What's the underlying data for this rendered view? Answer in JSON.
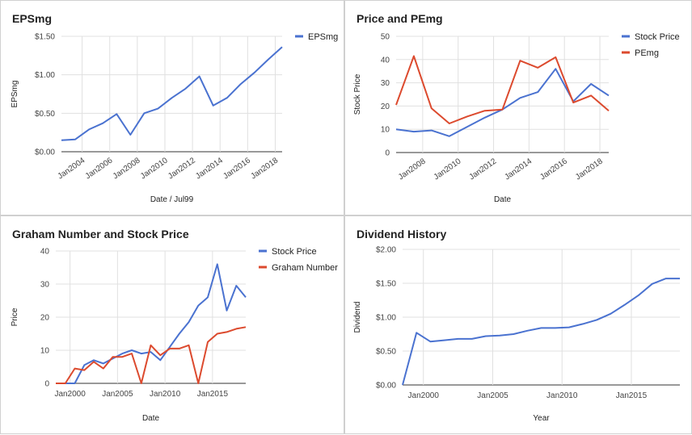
{
  "chart_data": [
    {
      "type": "line",
      "title": "EPSmg",
      "xlabel": "Date / Jul99",
      "ylabel": "EPSmg",
      "xlim": [
        2002.5,
        2018.5
      ],
      "ylim": [
        0,
        1.5
      ],
      "yticks": [
        0,
        0.5,
        1.0,
        1.5
      ],
      "ytick_labels": [
        "$0.00",
        "$0.50",
        "$1.00",
        "$1.50"
      ],
      "xticks": [
        2004,
        2006,
        2008,
        2010,
        2012,
        2014,
        2016,
        2018
      ],
      "xtick_labels": [
        "Jan2004",
        "Jan2006",
        "Jan2008",
        "Jan2010",
        "Jan2012",
        "Jan2014",
        "Jan2016",
        "Jan2018"
      ],
      "xtick_rotate": true,
      "vgrid": true,
      "legend": "top-right",
      "series": [
        {
          "name": "EPSmg",
          "color": "#4a72d0",
          "x": [
            2002.5,
            2003.5,
            2004.5,
            2005.5,
            2006.5,
            2007.5,
            2008.5,
            2009.5,
            2010.5,
            2011.5,
            2012.5,
            2013.5,
            2014.5,
            2015.5,
            2016.5,
            2017.5,
            2018.5
          ],
          "y": [
            0.15,
            0.16,
            0.29,
            0.37,
            0.49,
            0.22,
            0.5,
            0.56,
            0.7,
            0.82,
            0.98,
            0.6,
            0.7,
            0.88,
            1.03,
            1.2,
            1.36
          ]
        }
      ]
    },
    {
      "type": "line",
      "title": "Price and PEmg",
      "xlabel": "Date",
      "ylabel": "Stock Price",
      "xlim": [
        2006.5,
        2018.5
      ],
      "ylim": [
        0,
        50
      ],
      "yticks": [
        0,
        10,
        20,
        30,
        40,
        50
      ],
      "ytick_labels": [
        "0",
        "10",
        "20",
        "30",
        "40",
        "50"
      ],
      "xticks": [
        2008,
        2010,
        2012,
        2014,
        2016,
        2018
      ],
      "xtick_labels": [
        "Jan2008",
        "Jan2010",
        "Jan2012",
        "Jan2014",
        "Jan2016",
        "Jan2018"
      ],
      "xtick_rotate": true,
      "vgrid": true,
      "legend": "top-right",
      "series": [
        {
          "name": "Stock Price",
          "color": "#4a72d0",
          "x": [
            2006.5,
            2007.5,
            2008.5,
            2009.5,
            2010.5,
            2011.5,
            2012.5,
            2013.5,
            2014.5,
            2015.5,
            2016.5,
            2017.5,
            2018.5
          ],
          "y": [
            10.0,
            9.0,
            9.5,
            7.0,
            11.0,
            15.0,
            18.5,
            23.5,
            26.0,
            36.0,
            22.0,
            29.5,
            24.5
          ]
        },
        {
          "name": "PEmg",
          "color": "#dc4a2e",
          "x": [
            2006.5,
            2007.5,
            2008.5,
            2009.5,
            2010.5,
            2011.5,
            2012.5,
            2013.5,
            2014.5,
            2015.5,
            2016.5,
            2017.5,
            2018.5
          ],
          "y": [
            20.5,
            41.5,
            19.0,
            12.5,
            15.5,
            18.0,
            18.5,
            39.5,
            36.5,
            41.0,
            21.5,
            24.5,
            18.0
          ]
        }
      ]
    },
    {
      "type": "line",
      "title": "Graham Number and Stock Price",
      "xlabel": "Date",
      "ylabel": "Price",
      "xlim": [
        1998.5,
        2018.5
      ],
      "ylim": [
        0,
        40
      ],
      "yticks": [
        0,
        10,
        20,
        30,
        40
      ],
      "ytick_labels": [
        "0",
        "10",
        "20",
        "30",
        "40"
      ],
      "xticks": [
        2000,
        2005,
        2010,
        2015
      ],
      "xtick_labels": [
        "Jan2000",
        "Jan2005",
        "Jan2010",
        "Jan2015"
      ],
      "xtick_rotate": false,
      "vgrid": true,
      "legend": "top-right",
      "series": [
        {
          "name": "Stock Price",
          "color": "#4a72d0",
          "x": [
            1998.5,
            1999.5,
            2000.5,
            2001.5,
            2002.5,
            2003.5,
            2004.5,
            2005.5,
            2006.5,
            2007.5,
            2008.5,
            2009.5,
            2010.5,
            2011.5,
            2012.5,
            2013.5,
            2014.5,
            2015.5,
            2016.5,
            2017.5,
            2018.5
          ],
          "y": [
            0,
            0,
            0,
            5.5,
            7.0,
            6.0,
            7.5,
            9.0,
            10.0,
            9.0,
            9.5,
            7.0,
            11.0,
            15.0,
            18.5,
            23.5,
            26.0,
            36.0,
            22.0,
            29.5,
            26.0
          ]
        },
        {
          "name": "Graham Number",
          "color": "#dc4a2e",
          "x": [
            1998.5,
            1999.5,
            2000.5,
            2001.5,
            2002.5,
            2003.5,
            2004.5,
            2005.5,
            2006.5,
            2007.5,
            2008.5,
            2009.5,
            2010.5,
            2011.5,
            2012.5,
            2013.5,
            2014.5,
            2015.5,
            2016.5,
            2017.5,
            2018.5
          ],
          "y": [
            0,
            0,
            4.5,
            4.0,
            6.5,
            4.5,
            8.0,
            8.0,
            9.0,
            0,
            11.5,
            8.5,
            10.5,
            10.5,
            11.5,
            0,
            12.5,
            15.0,
            15.5,
            16.5,
            17.0
          ]
        }
      ]
    },
    {
      "type": "line",
      "title": "Dividend History",
      "xlabel": "Year",
      "ylabel": "Dividend",
      "xlim": [
        1998.5,
        2018.5
      ],
      "ylim": [
        0,
        2.0
      ],
      "yticks": [
        0,
        0.5,
        1.0,
        1.5,
        2.0
      ],
      "ytick_labels": [
        "$0.00",
        "$0.50",
        "$1.00",
        "$1.50",
        "$2.00"
      ],
      "xticks": [
        2000,
        2005,
        2010,
        2015
      ],
      "xtick_labels": [
        "Jan2000",
        "Jan2005",
        "Jan2010",
        "Jan2015"
      ],
      "xtick_rotate": false,
      "vgrid": true,
      "legend": "none",
      "series": [
        {
          "name": "",
          "color": "#4a72d0",
          "x": [
            1998.5,
            1999.5,
            2000.5,
            2001.5,
            2002.5,
            2003.5,
            2004.5,
            2005.5,
            2006.5,
            2007.5,
            2008.5,
            2009.5,
            2010.5,
            2011.5,
            2012.5,
            2013.5,
            2014.5,
            2015.5,
            2016.5,
            2017.5,
            2018.5
          ],
          "y": [
            0,
            0.77,
            0.64,
            0.66,
            0.68,
            0.68,
            0.72,
            0.73,
            0.75,
            0.8,
            0.84,
            0.84,
            0.85,
            0.9,
            0.96,
            1.05,
            1.18,
            1.32,
            1.49,
            1.57,
            1.57
          ]
        }
      ]
    }
  ]
}
